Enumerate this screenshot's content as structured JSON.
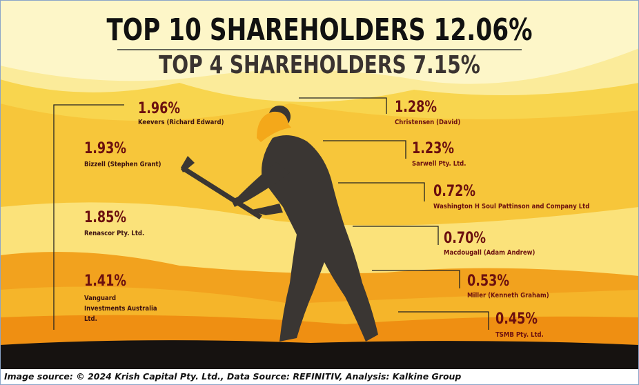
{
  "header": {
    "title": "TOP 10 SHAREHOLDERS 12.06%",
    "subtitle": "TOP 4 SHAREHOLDERS 7.15%"
  },
  "left_shareholders": [
    {
      "percent": "1.96%",
      "name": "Keevers (Richard Edward)"
    },
    {
      "percent": "1.93%",
      "name": "Bizzell (Stephen Grant)"
    },
    {
      "percent": "1.85%",
      "name": "Renascor Pty. Ltd."
    },
    {
      "percent": "1.41%",
      "name": "Vanguard Investments Australia Ltd."
    }
  ],
  "right_shareholders": [
    {
      "percent": "1.28%",
      "name": "Christensen (David)"
    },
    {
      "percent": "1.23%",
      "name": "Sarwell Pty. Ltd."
    },
    {
      "percent": "0.72%",
      "name": "Washington H Soul Pattinson and Company Ltd"
    },
    {
      "percent": "0.70%",
      "name": "Macdougall (Adam Andrew)"
    },
    {
      "percent": "0.53%",
      "name": "Miller (Kenneth Graham)"
    },
    {
      "percent": "0.45%",
      "name": "TSMB Pty. Ltd."
    }
  ],
  "footer": {
    "source": "Image source: © 2024 Krish Capital Pty. Ltd., Data Source: REFINITIV, Analysis: Kalkine Group"
  }
}
